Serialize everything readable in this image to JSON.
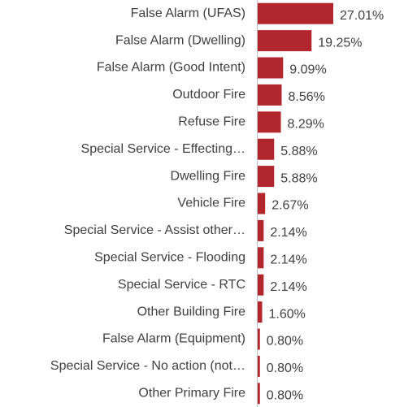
{
  "chart_data": {
    "type": "bar",
    "orientation": "horizontal",
    "color": "#b1272d",
    "categories": [
      "False Alarm (UFAS)",
      "False Alarm (Dwelling)",
      "False Alarm (Good Intent)",
      "Outdoor Fire",
      "Refuse Fire",
      "Special Service - Effecting…",
      "Dwelling Fire",
      "Vehicle Fire",
      "Special Service - Assist other…",
      "Special Service - Flooding",
      "Special Service - RTC",
      "Other Building Fire",
      "False Alarm (Equipment)",
      "Special Service - No action (not…",
      "Other Primary Fire"
    ],
    "values": [
      27.01,
      19.25,
      9.09,
      8.56,
      8.29,
      5.88,
      5.88,
      2.67,
      2.14,
      2.14,
      2.14,
      1.6,
      0.8,
      0.8,
      0.8
    ],
    "value_labels": [
      "27.01%",
      "19.25%",
      "9.09%",
      "8.56%",
      "8.29%",
      "5.88%",
      "5.88%",
      "2.67%",
      "2.14%",
      "2.14%",
      "2.14%",
      "1.60%",
      "0.80%",
      "0.80%",
      "0.80%"
    ]
  }
}
